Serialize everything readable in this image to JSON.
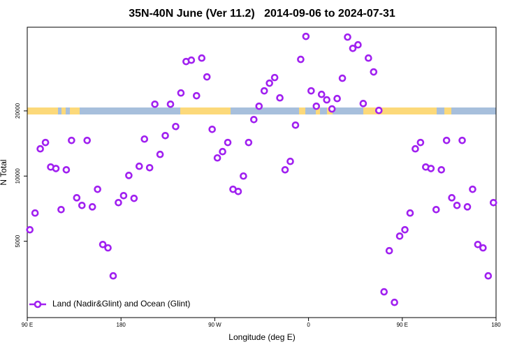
{
  "chart_data": {
    "type": "scatter",
    "title": "35N-40N June (Ver 11.2)   2014-09-06 to 2024-07-31",
    "x_label": "Longitude (deg E)",
    "y_label": "N Total",
    "xlim": [
      -270,
      180
    ],
    "xticks": [
      {
        "value": -270,
        "label": "90 E"
      },
      {
        "value": -180,
        "label": "180"
      },
      {
        "value": -90,
        "label": "90 W"
      },
      0,
      {
        "value": 90,
        "label": "90 E"
      },
      {
        "value": 180,
        "label": "180"
      }
    ],
    "ylim": [
      2220,
      48700
    ],
    "ylog": true,
    "yticks": [
      5000,
      10000,
      20000
    ],
    "legend": "lower left",
    "x": [
      -267.5,
      -262.5,
      -257.5,
      -252.5,
      -247.5,
      -242.5,
      -237.5,
      -232.5,
      -227.5,
      -222.5,
      -217.5,
      -212.5,
      -207.5,
      -202.5,
      -197.5,
      -192.5,
      -187.5,
      -182.5,
      -177.5,
      -172.5,
      -167.5,
      -162.5,
      -157.5,
      -152.5,
      -147.5,
      -142.5,
      -137.5,
      -132.5,
      -127.5,
      -122.5,
      -117.5,
      -112.5,
      -107.5,
      -102.5,
      -97.5,
      -92.5,
      -87.5,
      -82.5,
      -77.5,
      -72.5,
      -67.5,
      -62.5,
      -57.5,
      -52.5,
      -47.5,
      -42.5,
      -37.5,
      -32.5,
      -27.5,
      -22.5,
      -17.5,
      -12.5,
      -7.5,
      -2.5,
      2.5,
      7.5,
      12.5,
      17.5,
      22.5,
      27.5,
      32.5,
      37.5,
      42.5,
      47.5,
      52.5,
      57.5,
      62.5,
      67.5,
      72.5,
      77.5,
      82.5,
      87.5,
      92.5,
      97.5,
      102.5,
      107.5,
      112.5,
      117.5,
      122.5,
      127.5,
      132.5,
      137.5,
      142.5,
      147.5,
      152.5,
      157.5,
      162.5,
      167.5,
      172.5,
      177.5
    ],
    "series": [
      {
        "name": "Land (Nadir&Glint) and Ocean (Glint)",
        "color": "#a020f0",
        "values": [
          5650,
          6750,
          13360,
          14290,
          11010,
          10840,
          7000,
          10690,
          14610,
          7940,
          7320,
          14610,
          7210,
          8690,
          4830,
          4660,
          3460,
          7540,
          8120,
          10070,
          7890,
          11100,
          14820,
          10930,
          21480,
          12590,
          15380,
          21480,
          16940,
          24200,
          33810,
          34300,
          23500,
          35080,
          28710,
          16440,
          12130,
          12970,
          14290,
          8690,
          8490,
          10000,
          14290,
          18240,
          21020,
          24750,
          26860,
          28510,
          22970,
          10690,
          11690,
          17190,
          34590,
          44160,
          24750,
          21020,
          23840,
          22490,
          20420,
          22800,
          28310,
          43850,
          38900,
          40380,
          21630,
          35080,
          30270,
          20100,
          2920,
          4520,
          2610,
          5280,
          5650,
          6750,
          13360,
          14290,
          11010,
          10840,
          7000,
          10690,
          14610,
          7940,
          7320,
          14610,
          7210,
          8690,
          4830,
          4660,
          3460,
          7540
        ]
      }
    ]
  }
}
